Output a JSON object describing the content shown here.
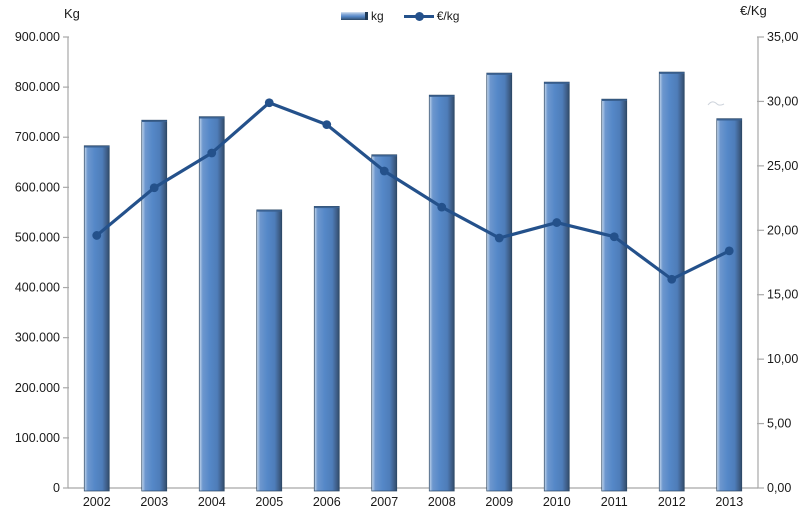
{
  "legend": {
    "items": [
      {
        "label": "kg",
        "swatch": "bar-swatch"
      },
      {
        "label": "€/kg",
        "swatch": "line-swatch"
      }
    ]
  },
  "chart_data": {
    "type": "combo",
    "categories": [
      "2002",
      "2003",
      "2004",
      "2005",
      "2006",
      "2007",
      "2008",
      "2009",
      "2010",
      "2011",
      "2012",
      "2013"
    ],
    "series": [
      {
        "name": "kg",
        "chart_type": "bar",
        "axis": "left",
        "values": [
          683000,
          734000,
          741000,
          555000,
          562000,
          665000,
          784000,
          828000,
          810000,
          776000,
          830000,
          737000
        ]
      },
      {
        "name": "€/kg",
        "chart_type": "line",
        "axis": "right",
        "values": [
          19.6,
          23.3,
          26.0,
          29.9,
          28.2,
          24.6,
          21.8,
          19.4,
          20.6,
          19.5,
          16.2,
          18.4
        ]
      }
    ],
    "left_axis": {
      "title": "Kg",
      "min": 0,
      "max": 900000,
      "step": 100000,
      "tick_labels": [
        "900.000",
        "800.000",
        "700.000",
        "600.000",
        "500.000",
        "400.000",
        "300.000",
        "200.000",
        "100.000",
        "0"
      ]
    },
    "right_axis": {
      "title": "€/Kg",
      "min": 0,
      "max": 35,
      "step": 5,
      "tick_labels": [
        "35,00",
        "30,00",
        "25,00",
        "20,00",
        "15,00",
        "10,00",
        "5,00",
        "0,00"
      ]
    },
    "grid": false,
    "legend_position": "top-center",
    "colors": {
      "bar_fill": "#5588C8",
      "bar_highlight": "#CBD9EC",
      "bar_mid_light": "#6D97CE",
      "bar_shade": "#4E7DB9",
      "bar_dark_edge": "#314C6B",
      "bar_outline": "#2B4764",
      "bar_top_edge": "#3A6191",
      "line": "#24518B",
      "axis": "#A8A8A8",
      "text": "#1A1A1A"
    }
  }
}
